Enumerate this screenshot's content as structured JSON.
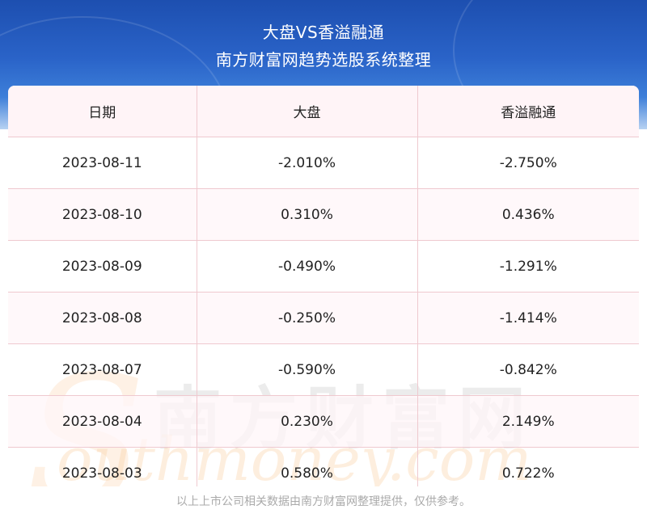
{
  "header": {
    "title_line1": "大盘VS香溢融通",
    "title_line2": "南方财富网趋势选股系统整理"
  },
  "table": {
    "columns": [
      "日期",
      "大盘",
      "香溢融通"
    ],
    "rows": [
      [
        "2023-08-11",
        "-2.010%",
        "-2.750%"
      ],
      [
        "2023-08-10",
        "0.310%",
        "0.436%"
      ],
      [
        "2023-08-09",
        "-0.490%",
        "-1.291%"
      ],
      [
        "2023-08-08",
        "-0.250%",
        "-1.414%"
      ],
      [
        "2023-08-07",
        "-0.590%",
        "-0.842%"
      ],
      [
        "2023-08-04",
        "0.230%",
        "2.149%"
      ],
      [
        "2023-08-03",
        "0.580%",
        "0.722%"
      ]
    ]
  },
  "watermark": {
    "cn": "南方财富网",
    "en": "outhmoney.com",
    "s": "S"
  },
  "footer": {
    "note": "以上上市公司相关数据由南方财富网整理提供，仅供参考。"
  },
  "colors": {
    "header_top": "#1d4fb0",
    "grid": "#efc9cf",
    "footer_text": "#aaaaaa"
  }
}
